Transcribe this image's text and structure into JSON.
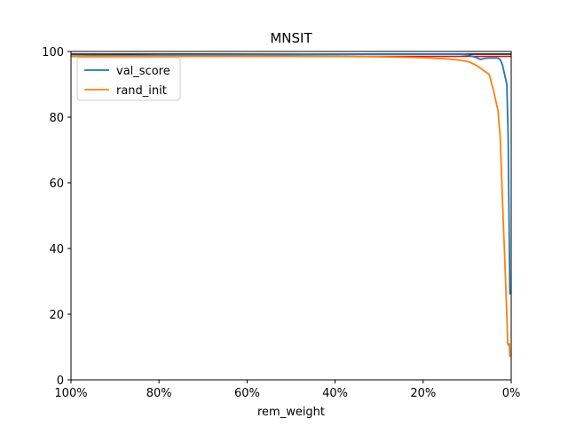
{
  "chart_data": {
    "type": "line",
    "title": "MNSIT",
    "xlabel": "rem_weight",
    "ylabel": "",
    "x_reversed": true,
    "xlim": [
      100,
      0
    ],
    "ylim": [
      0,
      100
    ],
    "x_ticks": [
      {
        "value": 100,
        "label": "100%"
      },
      {
        "value": 80,
        "label": "80%"
      },
      {
        "value": 60,
        "label": "60%"
      },
      {
        "value": 40,
        "label": "40%"
      },
      {
        "value": 20,
        "label": "20%"
      },
      {
        "value": 0,
        "label": "0%"
      }
    ],
    "y_ticks": [
      {
        "value": 0,
        "label": "0"
      },
      {
        "value": 20,
        "label": "20"
      },
      {
        "value": 40,
        "label": "40"
      },
      {
        "value": 60,
        "label": "60"
      },
      {
        "value": 80,
        "label": "80"
      },
      {
        "value": 100,
        "label": "100"
      }
    ],
    "legend_position": "top-left",
    "grid": false,
    "series": [
      {
        "name": "val_score",
        "color": "#1f77b4",
        "x": [
          100,
          80,
          60,
          40,
          30,
          20,
          15,
          12,
          10,
          9,
          8,
          7,
          6,
          5,
          4,
          3,
          2.5,
          2,
          1.5,
          1,
          0.7,
          0.5,
          0.3
        ],
        "y": [
          98.6,
          98.9,
          99.0,
          99.1,
          99.2,
          99.2,
          99.2,
          99.2,
          99.0,
          98.6,
          98.2,
          97.6,
          97.9,
          98.0,
          98.0,
          98.0,
          97.5,
          96.0,
          93.0,
          90.0,
          75.0,
          50.0,
          26.0
        ]
      },
      {
        "name": "rand_init",
        "color": "#ff7f0e",
        "x": [
          100,
          60,
          40,
          30,
          20,
          15,
          12,
          10,
          9,
          8,
          7,
          6,
          5,
          4,
          3,
          2.5,
          2,
          1.5,
          1,
          0.8,
          0.6,
          0.4,
          0.3
        ],
        "y": [
          98.5,
          98.6,
          98.5,
          98.4,
          98.1,
          97.8,
          97.4,
          97.0,
          96.5,
          95.8,
          94.9,
          94.0,
          93.0,
          88.0,
          82.0,
          74.0,
          55.0,
          38.0,
          20.0,
          11.0,
          10.5,
          11.0,
          7.0
        ]
      }
    ],
    "reference_lines": [
      {
        "y": 99.2,
        "color": "#000000"
      },
      {
        "y": 98.5,
        "color": "#ff0000"
      }
    ]
  }
}
